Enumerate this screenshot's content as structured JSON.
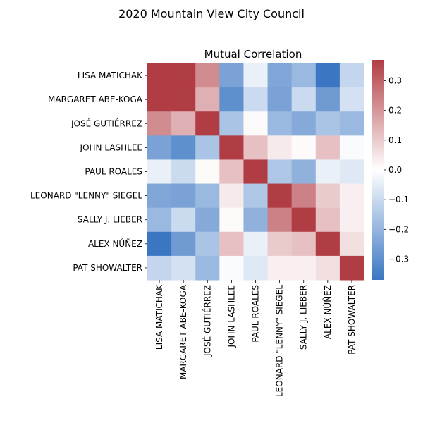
{
  "chart_data": {
    "type": "heatmap",
    "suptitle": "2020 Mountain View City Council",
    "title": "Mutual Correlation",
    "labels": [
      "LISA MATICHAK",
      "MARGARET ABE-KOGA",
      "JOSÉ GUTIÉRREZ",
      "JOHN LASHLEE",
      "PAUL ROALES",
      "LEONARD \"LENNY\" SIEGEL",
      "SALLY J. LIEBER",
      "ALEX NÚÑEZ",
      "PAT SHOWALTER"
    ],
    "matrix": [
      [
        0.37,
        0.37,
        0.22,
        -0.25,
        -0.04,
        -0.24,
        -0.19,
        -0.37,
        -0.11
      ],
      [
        0.37,
        0.37,
        0.15,
        -0.3,
        -0.1,
        -0.25,
        -0.1,
        -0.27,
        -0.08
      ],
      [
        0.22,
        0.15,
        0.37,
        -0.16,
        0.01,
        -0.19,
        -0.23,
        -0.16,
        -0.19
      ],
      [
        -0.25,
        -0.3,
        -0.16,
        0.37,
        0.12,
        0.04,
        0.01,
        0.12,
        -0.01
      ],
      [
        -0.04,
        -0.1,
        0.01,
        0.12,
        0.37,
        -0.15,
        -0.21,
        -0.04,
        -0.06
      ],
      [
        -0.24,
        -0.25,
        -0.19,
        0.04,
        -0.15,
        0.37,
        0.24,
        0.1,
        0.03
      ],
      [
        -0.19,
        -0.1,
        -0.23,
        0.01,
        -0.21,
        0.24,
        0.37,
        0.12,
        0.03
      ],
      [
        -0.37,
        -0.27,
        -0.16,
        0.12,
        -0.04,
        0.1,
        0.12,
        0.37,
        0.06
      ],
      [
        -0.11,
        -0.08,
        -0.19,
        -0.01,
        -0.06,
        0.03,
        0.03,
        0.06,
        0.37
      ]
    ],
    "vmin": -0.37,
    "vmax": 0.37,
    "colormap": [
      "#3a76c2",
      "#ffffff",
      "#b13d44"
    ],
    "colorbar_ticks": [
      -0.3,
      -0.2,
      -0.1,
      0.0,
      0.1,
      0.2,
      0.3
    ],
    "colorbar_tick_labels": [
      "−0.3",
      "−0.2",
      "−0.1",
      "0.0",
      "0.1",
      "0.2",
      "0.3"
    ]
  }
}
